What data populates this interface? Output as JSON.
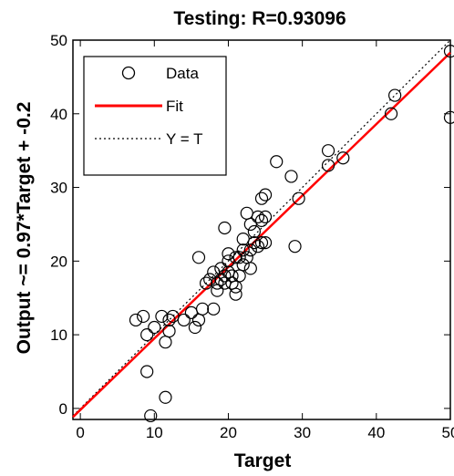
{
  "chart_data": {
    "type": "scatter",
    "title": "Testing: R=0.93096",
    "xlabel": "Target",
    "ylabel": "Output ~= 0.97*Target + -0.2",
    "xlim": [
      -1,
      50
    ],
    "ylim": [
      -1.5,
      50
    ],
    "xticks": [
      0,
      10,
      20,
      30,
      40,
      50
    ],
    "yticks": [
      0,
      10,
      20,
      30,
      40,
      50
    ],
    "grid": false,
    "legend_position": "top-left",
    "fit": {
      "slope": 0.97,
      "intercept": -0.2
    },
    "series": [
      {
        "name": "Data",
        "marker": "circle",
        "color": "#000000",
        "points": [
          [
            7.5,
            12
          ],
          [
            8.5,
            12.5
          ],
          [
            9,
            10
          ],
          [
            9,
            5
          ],
          [
            9.5,
            -1
          ],
          [
            10,
            11
          ],
          [
            11,
            12.5
          ],
          [
            11.5,
            1.5
          ],
          [
            11.5,
            9
          ],
          [
            12,
            10.5
          ],
          [
            12,
            12
          ],
          [
            12.5,
            12.5
          ],
          [
            14,
            12
          ],
          [
            15,
            13
          ],
          [
            15.5,
            11
          ],
          [
            16,
            12
          ],
          [
            16,
            20.5
          ],
          [
            16.5,
            13.5
          ],
          [
            17,
            17
          ],
          [
            17.5,
            17.5
          ],
          [
            18,
            18.5
          ],
          [
            18,
            13.5
          ],
          [
            18.5,
            16
          ],
          [
            18.5,
            17
          ],
          [
            19,
            17.5
          ],
          [
            19,
            19
          ],
          [
            19.5,
            17
          ],
          [
            19.5,
            18
          ],
          [
            19.5,
            24.5
          ],
          [
            20,
            21
          ],
          [
            20,
            18.5
          ],
          [
            20,
            20
          ],
          [
            20.5,
            17
          ],
          [
            20.5,
            18
          ],
          [
            21,
            20.5
          ],
          [
            21,
            15.5
          ],
          [
            21,
            16.5
          ],
          [
            21.5,
            20.5
          ],
          [
            21.5,
            18
          ],
          [
            22,
            19.5
          ],
          [
            22,
            21.5
          ],
          [
            22,
            23
          ],
          [
            22.5,
            20.5
          ],
          [
            22.5,
            26.5
          ],
          [
            23,
            21.5
          ],
          [
            23,
            19
          ],
          [
            23,
            25
          ],
          [
            23.5,
            22.5
          ],
          [
            23.5,
            24
          ],
          [
            24,
            26
          ],
          [
            24,
            22
          ],
          [
            24.5,
            28.5
          ],
          [
            24.5,
            25.5
          ],
          [
            24.5,
            22.5
          ],
          [
            25,
            29
          ],
          [
            25,
            26
          ],
          [
            25,
            22.5
          ],
          [
            26.5,
            33.5
          ],
          [
            28.5,
            31.5
          ],
          [
            29,
            22
          ],
          [
            29.5,
            28.5
          ],
          [
            33.5,
            33
          ],
          [
            33.5,
            35
          ],
          [
            35.5,
            34
          ],
          [
            42,
            40
          ],
          [
            42.5,
            42.5
          ],
          [
            50,
            48.5
          ],
          [
            50,
            39.5
          ]
        ]
      },
      {
        "name": "Fit",
        "style": "solid-line",
        "color": "#ff0000"
      },
      {
        "name": "Y = T",
        "style": "dotted-line",
        "color": "#000000"
      }
    ]
  }
}
